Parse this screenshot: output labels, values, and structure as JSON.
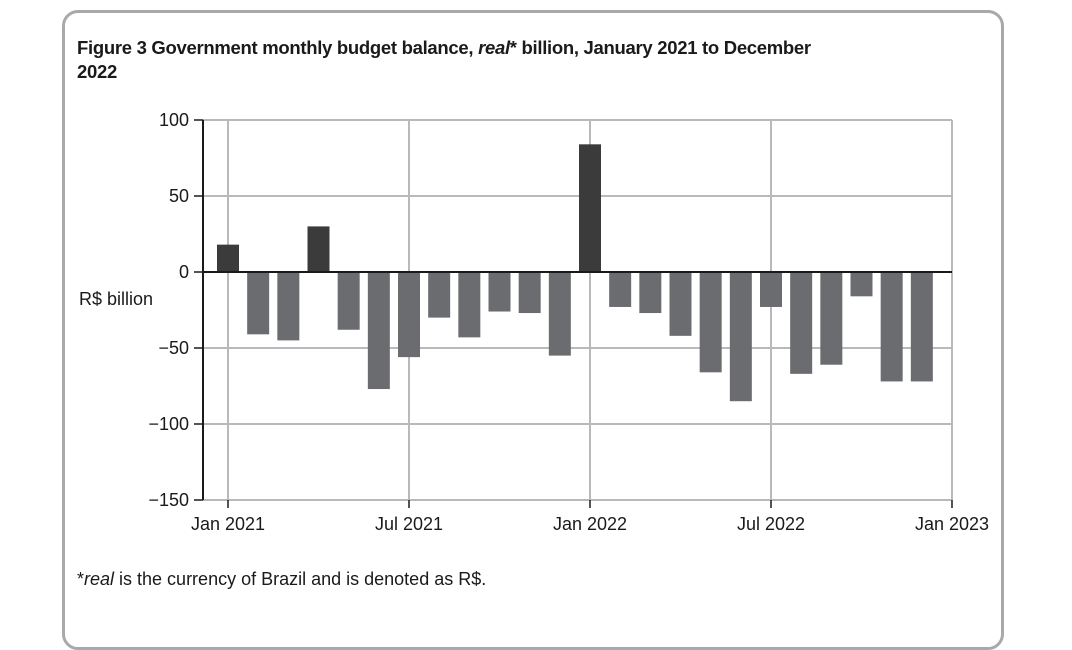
{
  "figure": {
    "title_prefix": "Figure 3 Government monthly budget balance, ",
    "title_italic": "real",
    "title_suffix": "* billion, January 2021 to December 2022",
    "footnote_prefix": "*",
    "footnote_italic": "real",
    "footnote_suffix": " is the currency of Brazil and is denoted as R$."
  },
  "colors": {
    "positive_bar": "#3b3b3b",
    "negative_bar": "#6b6c6f",
    "gridline": "#b9b9bb",
    "axis": "#1a1a1a",
    "card_border": "#a9a9ac"
  },
  "chart_data": {
    "type": "bar",
    "title": "Government monthly budget balance, real* billion, January 2021 to December 2022",
    "xlabel": "",
    "ylabel": "R$ billion",
    "ylim": [
      -150,
      100
    ],
    "yticks": [
      100,
      50,
      0,
      -50,
      -100,
      -150
    ],
    "ytick_labels": [
      "100",
      "50",
      "0",
      "−50",
      "−100",
      "−150"
    ],
    "xticks": [
      "Jan 2021",
      "Jul 2021",
      "Jan 2022",
      "Jul 2022",
      "Jan 2023"
    ],
    "xtick_month_index": [
      0,
      6,
      12,
      18,
      24
    ],
    "grid": true,
    "categories": [
      "Jan 2021",
      "Feb 2021",
      "Mar 2021",
      "Apr 2021",
      "May 2021",
      "Jun 2021",
      "Jul 2021",
      "Aug 2021",
      "Sep 2021",
      "Oct 2021",
      "Nov 2021",
      "Dec 2021",
      "Jan 2022",
      "Feb 2022",
      "Mar 2022",
      "Apr 2022",
      "May 2022",
      "Jun 2022",
      "Jul 2022",
      "Aug 2022",
      "Sep 2022",
      "Oct 2022",
      "Nov 2022",
      "Dec 2022"
    ],
    "values": [
      18,
      -41,
      -45,
      30,
      -38,
      -77,
      -56,
      -30,
      -43,
      -26,
      -27,
      -55,
      84,
      -23,
      -27,
      -42,
      -66,
      -85,
      -23,
      -67,
      -61,
      -16,
      -72,
      -72
    ]
  }
}
